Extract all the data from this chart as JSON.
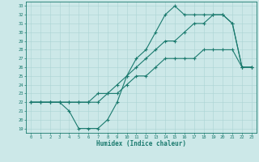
{
  "title": "",
  "xlabel": "Humidex (Indice chaleur)",
  "bg_color": "#cce8e8",
  "line_color": "#1a7a6e",
  "grid_color": "#aad4d4",
  "xlim": [
    -0.5,
    23.5
  ],
  "ylim": [
    18.5,
    33.5
  ],
  "xticks": [
    0,
    1,
    2,
    3,
    4,
    5,
    6,
    7,
    8,
    9,
    10,
    11,
    12,
    13,
    14,
    15,
    16,
    17,
    18,
    19,
    20,
    21,
    22,
    23
  ],
  "yticks": [
    19,
    20,
    21,
    22,
    23,
    24,
    25,
    26,
    27,
    28,
    29,
    30,
    31,
    32,
    33
  ],
  "line1_x": [
    0,
    1,
    2,
    3,
    4,
    5,
    6,
    7,
    8,
    9,
    10,
    11,
    12,
    13,
    14,
    15,
    16,
    17,
    18,
    19,
    20,
    21,
    22,
    23
  ],
  "line1_y": [
    22,
    22,
    22,
    22,
    21,
    19,
    19,
    19,
    20,
    22,
    25,
    27,
    28,
    30,
    32,
    33,
    32,
    32,
    32,
    32,
    32,
    31,
    26,
    26
  ],
  "line2_x": [
    0,
    1,
    2,
    3,
    4,
    5,
    6,
    7,
    8,
    9,
    10,
    11,
    12,
    13,
    14,
    15,
    16,
    17,
    18,
    19,
    20,
    21,
    22,
    23
  ],
  "line2_y": [
    22,
    22,
    22,
    22,
    22,
    22,
    22,
    22,
    23,
    24,
    25,
    26,
    27,
    28,
    29,
    29,
    30,
    31,
    31,
    32,
    32,
    31,
    26,
    26
  ],
  "line3_x": [
    0,
    1,
    2,
    3,
    4,
    5,
    6,
    7,
    8,
    9,
    10,
    11,
    12,
    13,
    14,
    15,
    16,
    17,
    18,
    19,
    20,
    21,
    22,
    23
  ],
  "line3_y": [
    22,
    22,
    22,
    22,
    22,
    22,
    22,
    23,
    23,
    23,
    24,
    25,
    25,
    26,
    27,
    27,
    27,
    27,
    28,
    28,
    28,
    28,
    26,
    26
  ]
}
